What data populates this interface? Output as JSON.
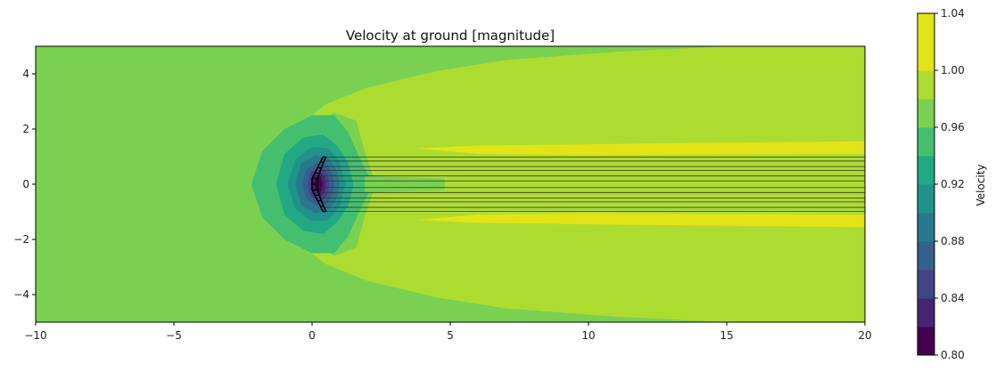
{
  "chart_data": {
    "type": "contour",
    "title": "Velocity at ground [magnitude]",
    "xlim": [
      -10,
      20
    ],
    "ylim": [
      -5,
      5
    ],
    "x_ticks": [
      -10,
      -5,
      0,
      5,
      10,
      15,
      20
    ],
    "x_tick_labels": [
      "−10",
      "−5",
      "0",
      "5",
      "10",
      "15",
      "20"
    ],
    "y_ticks": [
      -4,
      -2,
      0,
      2,
      4
    ],
    "y_tick_labels": [
      "−4",
      "−2",
      "0",
      "2",
      "4"
    ],
    "colorbar": {
      "label": "Velocity",
      "range": [
        0.8,
        1.04
      ],
      "levels": [
        0.8,
        0.82,
        0.84,
        0.86,
        0.88,
        0.9,
        0.92,
        0.94,
        0.96,
        0.98,
        1.0,
        1.02,
        1.04
      ],
      "colors": [
        "#440154",
        "#482475",
        "#414487",
        "#355f8d",
        "#2a788e",
        "#21918c",
        "#22a884",
        "#44bf70",
        "#7ad151",
        "#addc30",
        "#e3e418",
        "#e3e418"
      ],
      "tick_values": [
        0.8,
        0.84,
        0.88,
        0.92,
        0.96,
        1.0,
        1.04
      ],
      "tick_labels": [
        "0.80",
        "0.84",
        "0.88",
        "0.92",
        "0.96",
        "1.00",
        "1.04"
      ]
    },
    "background_level_color": "#7ad151",
    "regions": [
      {
        "level": "1.00-1.02",
        "color": "#addc30",
        "polygon": [
          [
            -0.4,
            2.2
          ],
          [
            0.5,
            2.9
          ],
          [
            2.0,
            3.5
          ],
          [
            4.5,
            4.1
          ],
          [
            7,
            4.5
          ],
          [
            11,
            4.8
          ],
          [
            15,
            5.0
          ],
          [
            20,
            5.0
          ],
          [
            20,
            -5.0
          ],
          [
            15,
            -5.0
          ],
          [
            11,
            -4.8
          ],
          [
            7,
            -4.5
          ],
          [
            4.5,
            -4.1
          ],
          [
            2.0,
            -3.5
          ],
          [
            0.5,
            -2.9
          ],
          [
            -0.4,
            -2.2
          ],
          [
            -0.6,
            0
          ]
        ]
      },
      {
        "level": "0.98-1.00",
        "color": "#7ad151",
        "polygon": [
          [
            -0.5,
            1.8
          ],
          [
            0.8,
            2.6
          ],
          [
            1.6,
            2.3
          ],
          [
            1.9,
            1.2
          ],
          [
            2.3,
            0
          ],
          [
            1.9,
            -1.2
          ],
          [
            1.6,
            -2.3
          ],
          [
            0.8,
            -2.6
          ],
          [
            -0.5,
            -1.8
          ],
          [
            -0.8,
            0
          ]
        ]
      },
      {
        "level": "1.02-1.04",
        "color": "#e3e418",
        "polygon": [
          [
            3.8,
            1.3
          ],
          [
            6,
            1.4
          ],
          [
            10,
            1.45
          ],
          [
            14,
            1.5
          ],
          [
            20,
            1.55
          ],
          [
            20,
            -1.55
          ],
          [
            14,
            -1.5
          ],
          [
            10,
            -1.45
          ],
          [
            6,
            -1.4
          ],
          [
            3.8,
            -1.3
          ],
          [
            6,
            -1.1
          ],
          [
            10,
            -1.05
          ],
          [
            20,
            -1.1
          ],
          [
            20,
            1.1
          ],
          [
            10,
            1.05
          ],
          [
            6,
            1.1
          ]
        ]
      },
      {
        "level": "1.00-1.02 inner",
        "color": "#addc30",
        "polygon": [
          [
            4.8,
            0.9
          ],
          [
            10,
            1.05
          ],
          [
            20,
            1.1
          ],
          [
            20,
            -1.1
          ],
          [
            10,
            -1.05
          ],
          [
            4.8,
            -0.9
          ],
          [
            3.2,
            -0.6
          ],
          [
            3.2,
            0.6
          ]
        ]
      },
      {
        "level": "0.96-0.98",
        "color": "#44bf70",
        "polygon": [
          [
            -2.2,
            0
          ],
          [
            -1.8,
            1.2
          ],
          [
            -1.0,
            2.0
          ],
          [
            0,
            2.5
          ],
          [
            0.8,
            2.5
          ],
          [
            1.3,
            1.9
          ],
          [
            1.7,
            1.0
          ],
          [
            2.2,
            0
          ],
          [
            1.7,
            -1.0
          ],
          [
            1.3,
            -1.9
          ],
          [
            0.8,
            -2.5
          ],
          [
            0,
            -2.5
          ],
          [
            -1.0,
            -2.0
          ],
          [
            -1.8,
            -1.2
          ]
        ]
      },
      {
        "level": "0.98-1.00 wake",
        "color": "#7ad151",
        "polygon": [
          [
            1.9,
            0.3
          ],
          [
            3.5,
            0.25
          ],
          [
            4.8,
            0.2
          ],
          [
            4.8,
            -0.2
          ],
          [
            3.5,
            -0.25
          ],
          [
            1.9,
            -0.3
          ]
        ]
      },
      {
        "level": "0.94-0.96",
        "color": "#22a884",
        "polygon": [
          [
            -1.3,
            0
          ],
          [
            -1.0,
            1.1
          ],
          [
            -0.3,
            1.7
          ],
          [
            0.4,
            1.8
          ],
          [
            0.9,
            1.4
          ],
          [
            1.3,
            0.8
          ],
          [
            1.5,
            0
          ],
          [
            1.3,
            -0.8
          ],
          [
            0.9,
            -1.4
          ],
          [
            0.4,
            -1.8
          ],
          [
            -0.3,
            -1.7
          ],
          [
            -1.0,
            -1.1
          ]
        ]
      },
      {
        "level": "0.92-0.94",
        "color": "#21918c",
        "polygon": [
          [
            -0.9,
            0
          ],
          [
            -0.6,
            0.9
          ],
          [
            0,
            1.35
          ],
          [
            0.6,
            1.3
          ],
          [
            1.0,
            0.8
          ],
          [
            1.2,
            0
          ],
          [
            1.0,
            -0.8
          ],
          [
            0.6,
            -1.3
          ],
          [
            0,
            -1.35
          ],
          [
            -0.6,
            -0.9
          ]
        ]
      },
      {
        "level": "0.90-0.92",
        "color": "#2a788e",
        "polygon": [
          [
            -0.6,
            0
          ],
          [
            -0.4,
            0.75
          ],
          [
            0.1,
            1.05
          ],
          [
            0.6,
            0.95
          ],
          [
            0.9,
            0.5
          ],
          [
            1.0,
            0
          ],
          [
            0.9,
            -0.5
          ],
          [
            0.6,
            -0.95
          ],
          [
            0.1,
            -1.05
          ],
          [
            -0.4,
            -0.75
          ]
        ]
      },
      {
        "level": "0.88-0.90",
        "color": "#355f8d",
        "polygon": [
          [
            -0.35,
            0
          ],
          [
            -0.2,
            0.55
          ],
          [
            0.2,
            0.8
          ],
          [
            0.55,
            0.7
          ],
          [
            0.75,
            0.35
          ],
          [
            0.8,
            0
          ],
          [
            0.75,
            -0.35
          ],
          [
            0.55,
            -0.7
          ],
          [
            0.2,
            -0.8
          ],
          [
            -0.2,
            -0.55
          ]
        ]
      },
      {
        "level": "0.86-0.88",
        "color": "#414487",
        "polygon": [
          [
            -0.15,
            0
          ],
          [
            -0.05,
            0.45
          ],
          [
            0.25,
            0.6
          ],
          [
            0.5,
            0.5
          ],
          [
            0.6,
            0.25
          ],
          [
            0.62,
            0
          ],
          [
            0.6,
            -0.25
          ],
          [
            0.5,
            -0.5
          ],
          [
            0.25,
            -0.6
          ],
          [
            -0.05,
            -0.45
          ]
        ]
      },
      {
        "level": "0.84-0.86",
        "color": "#482475",
        "polygon": [
          [
            0.0,
            0
          ],
          [
            0.05,
            0.35
          ],
          [
            0.3,
            0.45
          ],
          [
            0.45,
            0.3
          ],
          [
            0.5,
            0
          ],
          [
            0.45,
            -0.3
          ],
          [
            0.3,
            -0.45
          ],
          [
            0.05,
            -0.35
          ]
        ]
      },
      {
        "level": "0.80-0.84",
        "color": "#440154",
        "polygon": [
          [
            0.05,
            0
          ],
          [
            0.12,
            0.25
          ],
          [
            0.3,
            0.3
          ],
          [
            0.4,
            0
          ],
          [
            0.3,
            -0.3
          ],
          [
            0.12,
            -0.25
          ]
        ]
      }
    ],
    "wake_lines_y": [
      0.98,
      0.84,
      0.64,
      0.5,
      0.3,
      0.12,
      -0.12,
      -0.3,
      -0.5,
      -0.64,
      -0.84,
      -0.98
    ],
    "wake_lines_x_start": [
      0.45,
      0.4,
      0.3,
      0.2,
      0.1,
      0.05,
      0.05,
      0.1,
      0.2,
      0.3,
      0.4,
      0.45
    ],
    "wing_outline": {
      "leading_edge": [
        [
          0.4,
          1.0
        ],
        [
          0.15,
          0.5
        ],
        [
          0.0,
          0.2
        ],
        [
          0.0,
          -0.2
        ],
        [
          0.15,
          -0.5
        ],
        [
          0.4,
          -1.0
        ]
      ],
      "trailing_edge": [
        [
          0.5,
          1.0
        ],
        [
          0.3,
          0.5
        ],
        [
          0.2,
          0.2
        ],
        [
          0.2,
          -0.2
        ],
        [
          0.3,
          -0.5
        ],
        [
          0.5,
          -1.0
        ]
      ],
      "ribs_y": [
        1.0,
        0.8,
        0.6,
        0.4,
        0.2,
        0.0,
        -0.2,
        -0.4,
        -0.6,
        -0.8,
        -1.0
      ]
    }
  }
}
